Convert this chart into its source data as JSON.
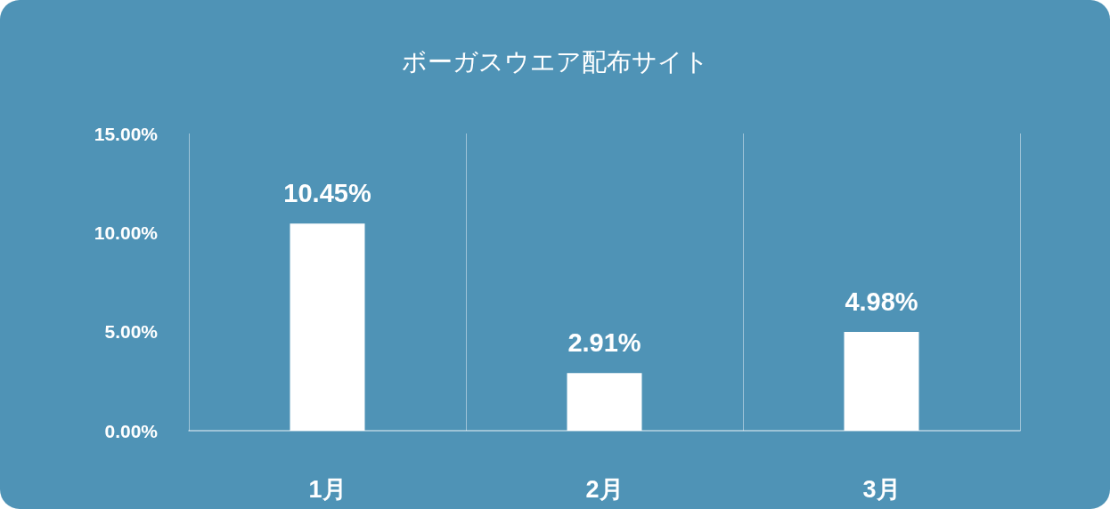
{
  "chart_data": {
    "type": "bar",
    "title": "ボーガスウエア配布サイト",
    "categories": [
      "1月",
      "2月",
      "3月"
    ],
    "values": [
      10.45,
      2.91,
      4.98
    ],
    "color": "#ffffff",
    "value_labels": [
      "10.45%",
      "2.91%",
      "4.98%"
    ],
    "ylim": [
      0,
      15
    ],
    "yticks": [
      {
        "value": 0,
        "label": "0.00%"
      },
      {
        "value": 5,
        "label": "5.00%"
      },
      {
        "value": 10,
        "label": "10.00%"
      },
      {
        "value": 15,
        "label": "15.00%"
      }
    ],
    "grid": "x"
  }
}
